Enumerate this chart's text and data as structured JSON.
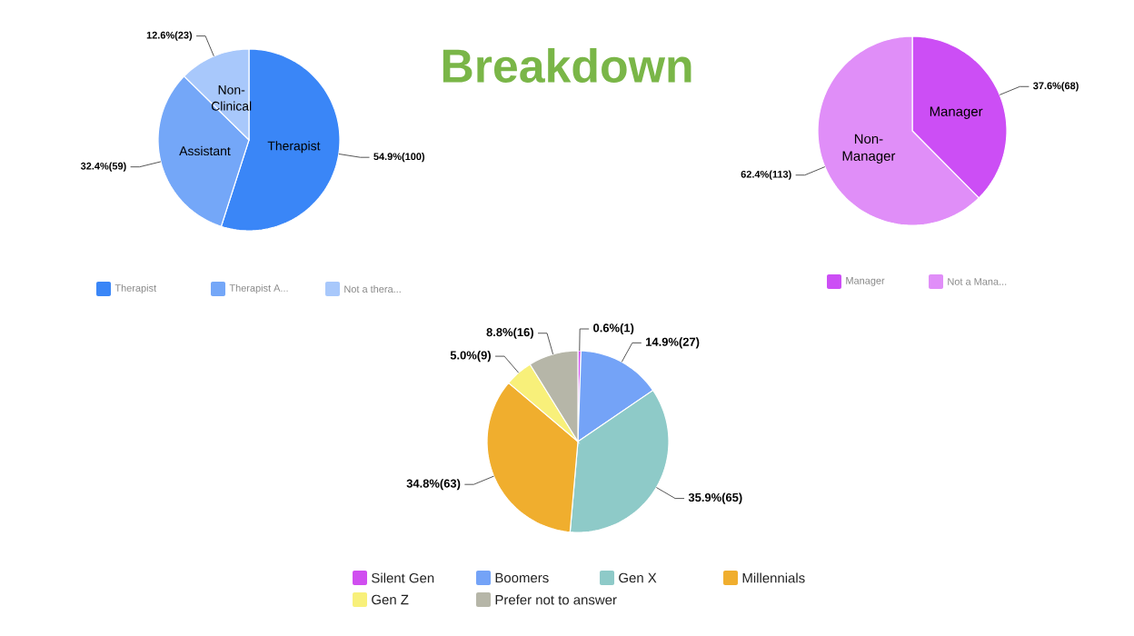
{
  "chart_data": [
    {
      "type": "pie",
      "title": "Breakdown",
      "categories": [
        "Therapist",
        "Therapist A...",
        "Not a thera..."
      ],
      "values": [
        100,
        59,
        23
      ],
      "colors": [
        "#3a86f7",
        "#74a7f8",
        "#a8c8fb"
      ],
      "value_labels": [
        "54.9%(100)",
        "32.4%(59)",
        "12.6%(23)"
      ],
      "annotations": [
        "Therapist",
        "Assistant",
        "Non-Clinical"
      ],
      "legend": "bottom"
    },
    {
      "type": "pie",
      "categories": [
        "Manager",
        "Not a Mana..."
      ],
      "values": [
        68,
        113
      ],
      "colors": [
        "#cc4ef5",
        "#e08ef8"
      ],
      "value_labels": [
        "37.6%(68)",
        "62.4%(113)"
      ],
      "annotations": [
        "Manager",
        "Non-Manager"
      ],
      "legend": "bottom"
    },
    {
      "type": "pie",
      "categories": [
        "Silent Gen",
        "Boomers",
        "Gen X",
        "Millennials",
        "Gen Z",
        "Prefer not to answer"
      ],
      "values": [
        1,
        27,
        65,
        63,
        9,
        16
      ],
      "colors": [
        "#d04ef0",
        "#74a3f7",
        "#8ecac8",
        "#f0ae2e",
        "#f8f07a",
        "#b6b6a8"
      ],
      "value_labels": [
        "0.6%(1)",
        "14.9%(27)",
        "35.9%(65)",
        "34.8%(63)",
        "5.0%(9)",
        "8.8%(16)"
      ],
      "legend": "bottom"
    }
  ]
}
